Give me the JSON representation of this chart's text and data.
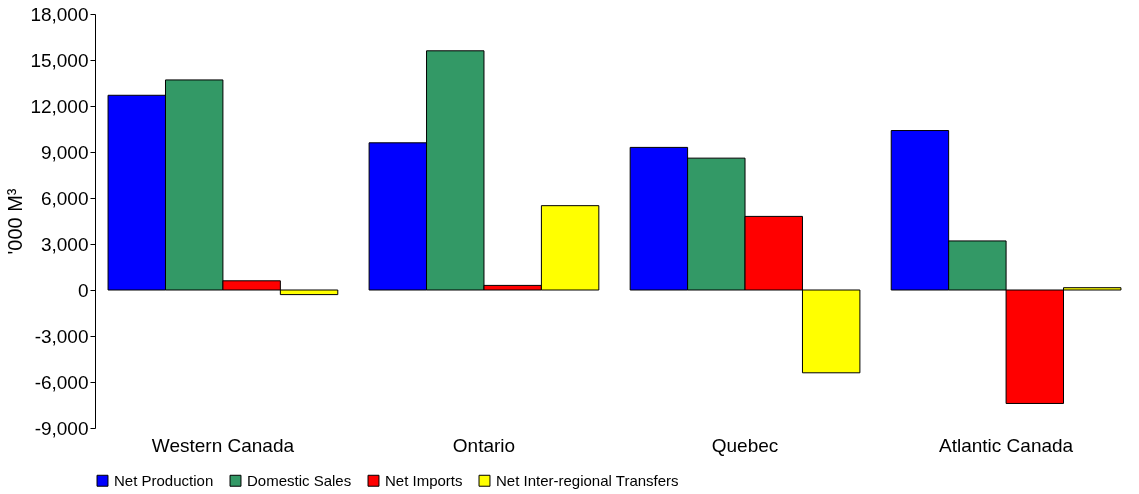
{
  "chart_data": {
    "type": "bar",
    "ylabel": "'000 M³",
    "categories": [
      "Western Canada",
      "Ontario",
      "Quebec",
      "Atlantic Canada"
    ],
    "series": [
      {
        "name": "Net Production",
        "color": "#0000ff",
        "values": [
          12700,
          9600,
          9300,
          10400
        ]
      },
      {
        "name": "Domestic Sales",
        "color": "#339966",
        "values": [
          13700,
          15600,
          8600,
          3200
        ]
      },
      {
        "name": "Net Imports",
        "color": "#ff0000",
        "values": [
          600,
          300,
          4800,
          -7400
        ]
      },
      {
        "name": "Net Inter-regional Transfers",
        "color": "#ffff00",
        "values": [
          -300,
          5500,
          -5400,
          150
        ]
      }
    ],
    "ylim": [
      -9000,
      18000
    ],
    "yticks": [
      {
        "value": -9000,
        "label": "-9,000"
      },
      {
        "value": -6000,
        "label": "-6,000"
      },
      {
        "value": -3000,
        "label": "-3,000"
      },
      0,
      {
        "value": 3000,
        "label": "3,000"
      },
      {
        "value": 6000,
        "label": "6,000"
      },
      {
        "value": 9000,
        "label": "9,000"
      },
      {
        "value": 12000,
        "label": "12,000"
      },
      {
        "value": 15000,
        "label": "15,000"
      },
      {
        "value": 18000,
        "label": "18,000"
      }
    ],
    "grid": false,
    "legend": "bottom"
  }
}
